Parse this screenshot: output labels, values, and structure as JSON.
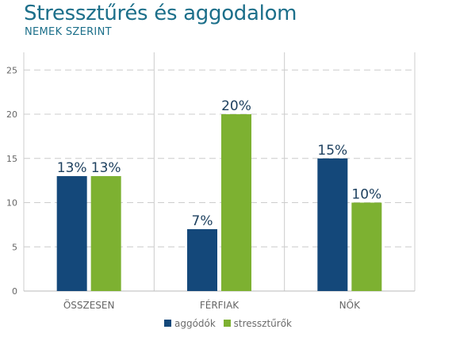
{
  "header": {
    "title": "Stressztűrés és aggodalom",
    "subtitle": "NEMEK SZERINT"
  },
  "colors": {
    "aggodok": "#14487a",
    "stressturok": "#7db131",
    "title": "#1c6f8a",
    "label": "#1c3f5e",
    "axis_text": "#666666",
    "grid": "#cccccc"
  },
  "chart_data": {
    "type": "bar",
    "title": "Stressztűrés és aggodalom",
    "subtitle": "NEMEK SZERINT",
    "categories": [
      "ÖSSZESEN",
      "FÉRFIAK",
      "NŐK"
    ],
    "series": [
      {
        "name": "aggódók",
        "values": [
          13,
          7,
          15
        ],
        "labels": [
          "13%",
          "7%",
          "15%"
        ]
      },
      {
        "name": "stressztűrők",
        "values": [
          13,
          20,
          10
        ],
        "labels": [
          "13%",
          "20%",
          "10%"
        ]
      }
    ],
    "yticks": [
      "0",
      "5",
      "10",
      "15",
      "20",
      "25"
    ],
    "ylim": [
      0,
      27
    ],
    "grid": true,
    "legend_position": "bottom-center"
  }
}
